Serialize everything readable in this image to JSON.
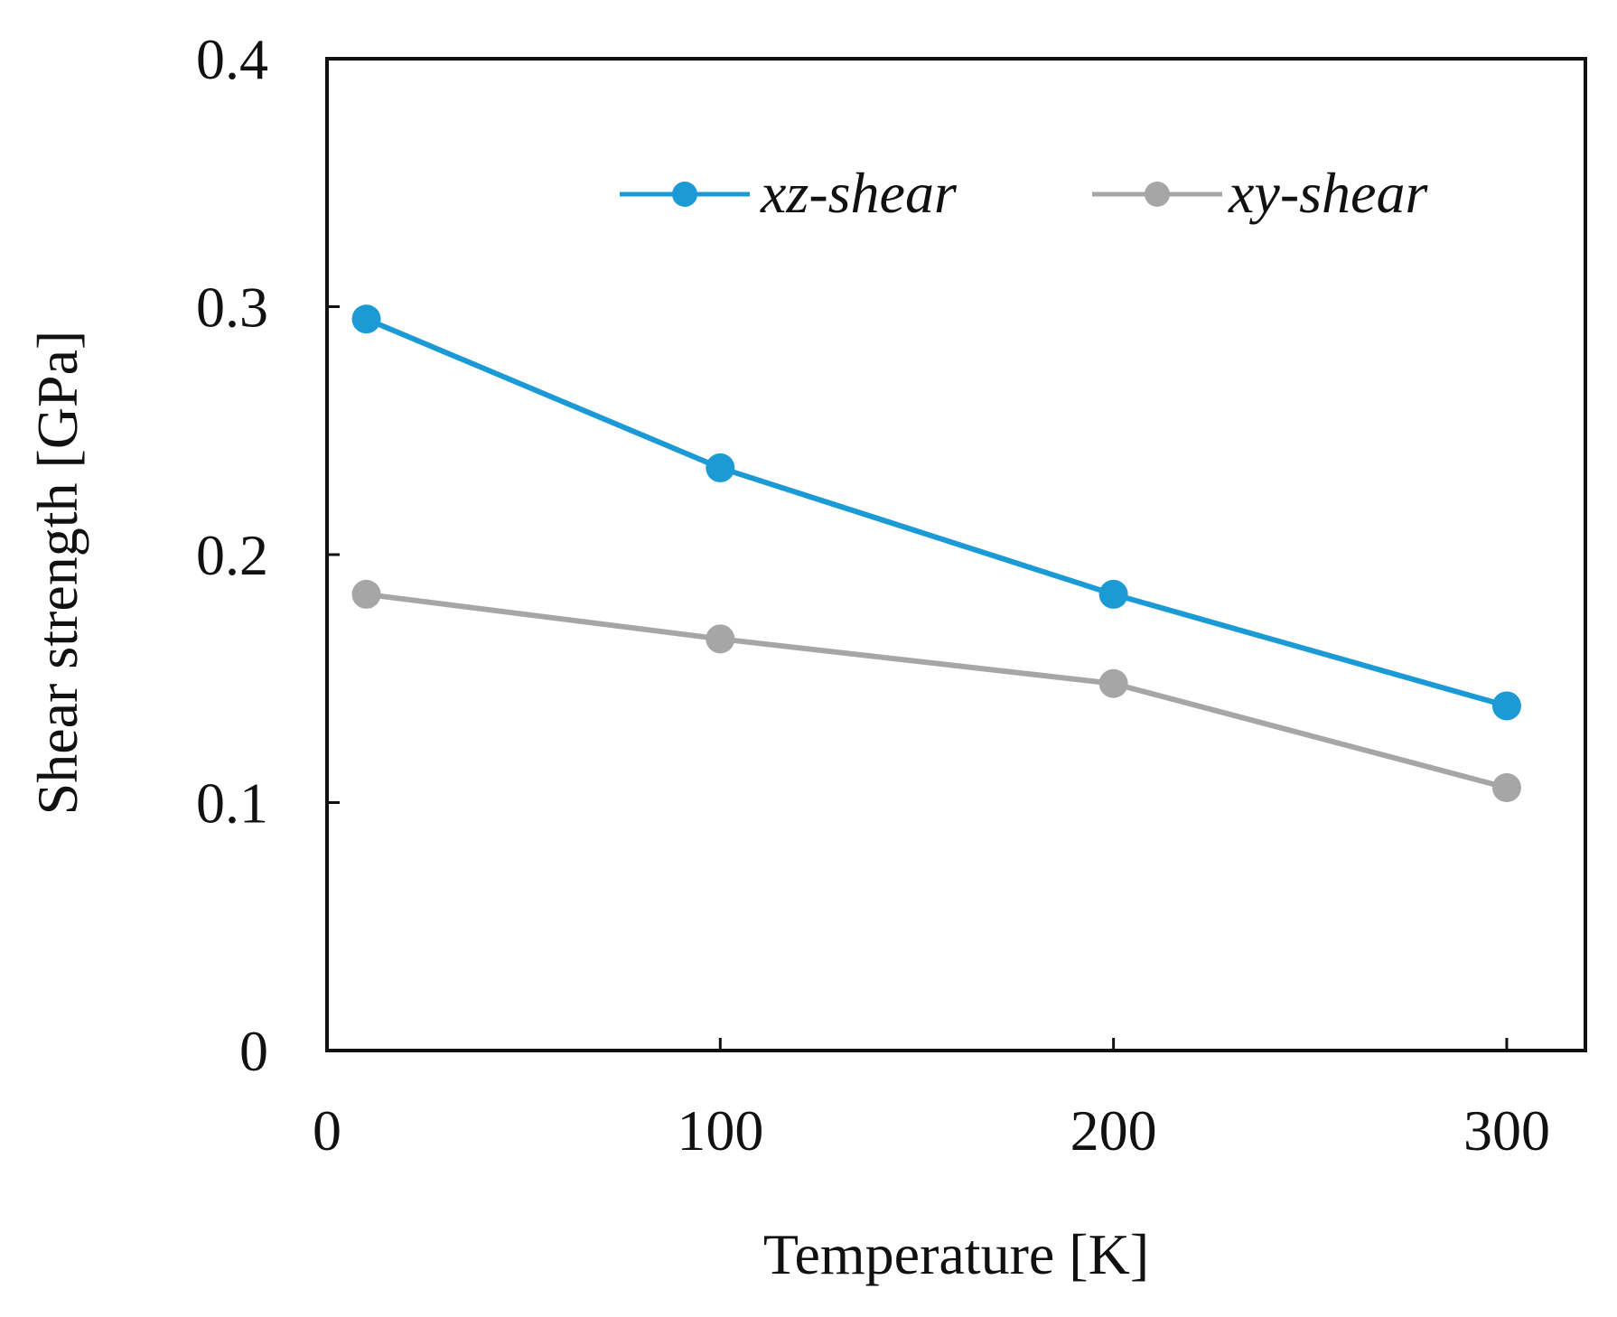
{
  "chart_data": {
    "type": "line",
    "title": "",
    "xlabel": "Temperature [K]",
    "ylabel": "Shear strength [GPa]",
    "xlim": [
      0,
      320
    ],
    "ylim": [
      0,
      0.4
    ],
    "xticks": [
      0,
      100,
      200,
      300
    ],
    "yticks": [
      0,
      0.1,
      0.2,
      0.3,
      0.4
    ],
    "xtick_labels": [
      "0",
      "100",
      "200",
      "300"
    ],
    "ytick_labels": [
      "0",
      "0.1",
      "0.2",
      "0.3",
      "0.4"
    ],
    "grid": false,
    "legend_position": "top-right",
    "series": [
      {
        "name": "xz-shear",
        "color": "#1b9ad6",
        "x": [
          10,
          100,
          200,
          300
        ],
        "y": [
          0.295,
          0.235,
          0.184,
          0.139
        ]
      },
      {
        "name": "xy-shear",
        "color": "#a6a6a6",
        "x": [
          10,
          100,
          200,
          300
        ],
        "y": [
          0.184,
          0.166,
          0.148,
          0.106
        ]
      }
    ]
  }
}
